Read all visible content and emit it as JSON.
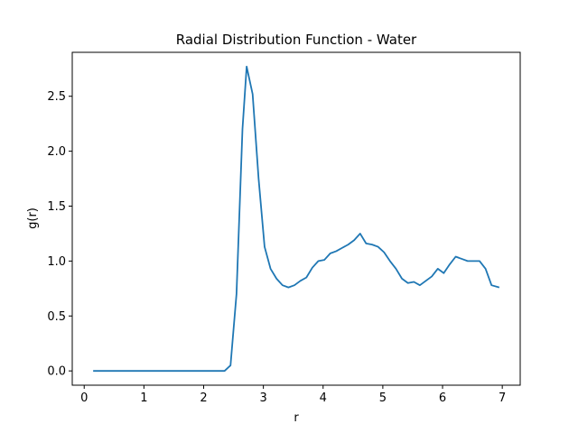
{
  "chart_data": {
    "type": "line",
    "title": "Radial Distribution Function - Water",
    "xlabel": "r",
    "ylabel": "g(r)",
    "xlim": [
      -0.2,
      7.3
    ],
    "ylim": [
      -0.13,
      2.9
    ],
    "xticks": [
      0,
      1,
      2,
      3,
      4,
      5,
      6,
      7
    ],
    "xtick_labels": [
      "0",
      "1",
      "2",
      "3",
      "4",
      "5",
      "6",
      "7"
    ],
    "yticks": [
      0.0,
      0.5,
      1.0,
      1.5,
      2.0,
      2.5
    ],
    "ytick_labels": [
      "0.0",
      "0.5",
      "1.0",
      "1.5",
      "2.0",
      "2.5"
    ],
    "grid": false,
    "series": [
      {
        "color": "#1f77b4",
        "x": [
          0.15,
          0.25,
          0.35,
          0.45,
          0.55,
          0.65,
          0.75,
          0.85,
          0.95,
          1.05,
          1.15,
          1.25,
          1.35,
          1.45,
          1.55,
          1.65,
          1.75,
          1.85,
          1.95,
          2.05,
          2.15,
          2.25,
          2.35,
          2.45,
          2.55,
          2.65,
          2.72,
          2.82,
          2.92,
          3.02,
          3.12,
          3.22,
          3.32,
          3.42,
          3.52,
          3.62,
          3.72,
          3.82,
          3.92,
          4.02,
          4.12,
          4.22,
          4.32,
          4.42,
          4.52,
          4.62,
          4.72,
          4.82,
          4.92,
          5.02,
          5.12,
          5.22,
          5.32,
          5.42,
          5.52,
          5.62,
          5.72,
          5.82,
          5.92,
          6.02,
          6.12,
          6.22,
          6.32,
          6.42,
          6.52,
          6.62,
          6.72,
          6.82,
          6.95
        ],
        "y": [
          0.0,
          0.0,
          0.0,
          0.0,
          0.0,
          0.0,
          0.0,
          0.0,
          0.0,
          0.0,
          0.0,
          0.0,
          0.0,
          0.0,
          0.0,
          0.0,
          0.0,
          0.0,
          0.0,
          0.0,
          0.0,
          0.0,
          0.0,
          0.05,
          0.7,
          2.2,
          2.77,
          2.52,
          1.75,
          1.13,
          0.93,
          0.84,
          0.78,
          0.76,
          0.78,
          0.82,
          0.85,
          0.94,
          1.0,
          1.01,
          1.07,
          1.09,
          1.12,
          1.15,
          1.19,
          1.25,
          1.16,
          1.15,
          1.13,
          1.08,
          1.0,
          0.93,
          0.84,
          0.8,
          0.81,
          0.78,
          0.82,
          0.86,
          0.93,
          0.89,
          0.97,
          1.04,
          1.02,
          1.0,
          1.0,
          1.0,
          0.93,
          0.78,
          0.76
        ]
      }
    ]
  }
}
